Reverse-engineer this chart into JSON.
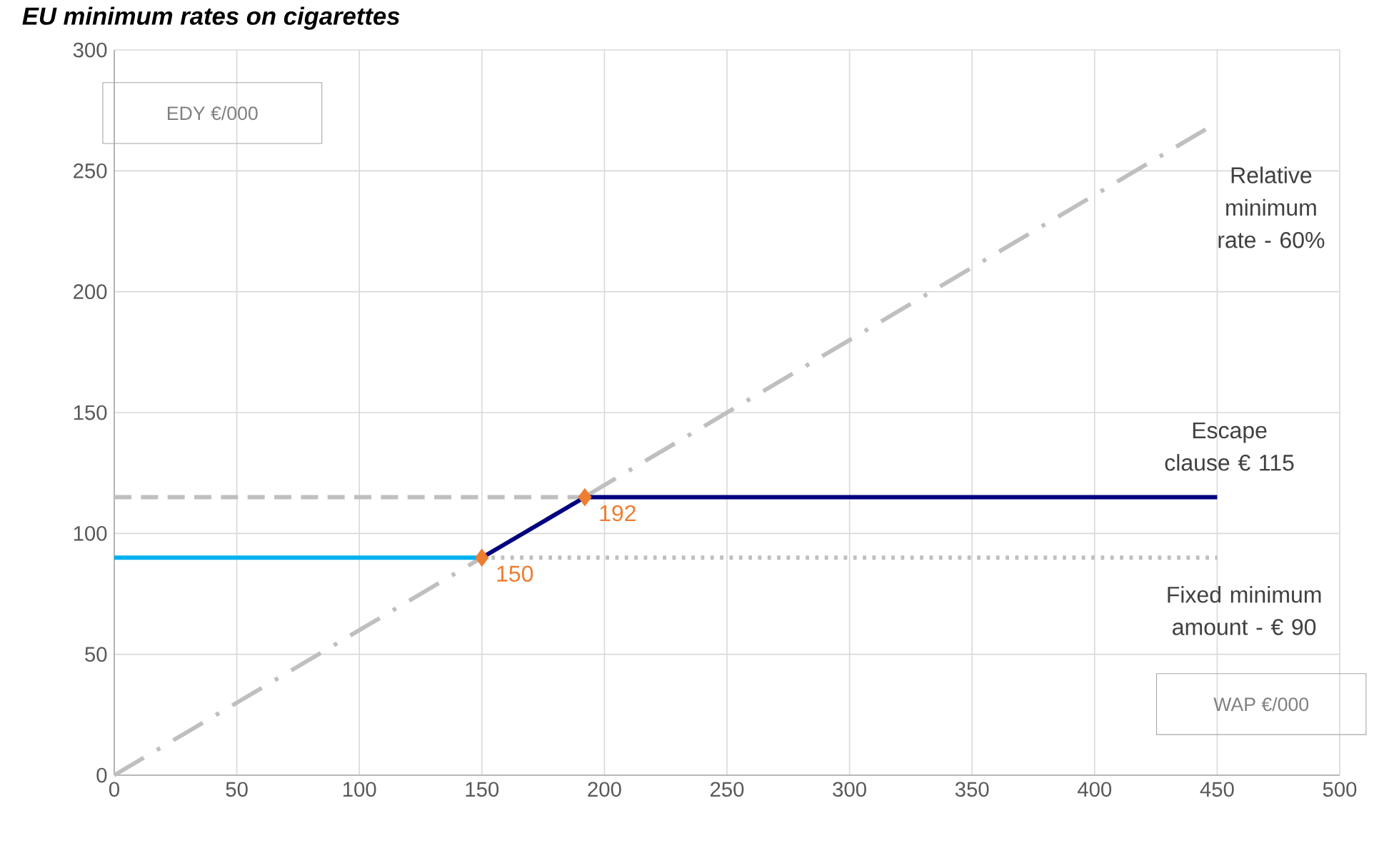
{
  "chart_data": {
    "type": "line",
    "title": "EU minimum rates on cigarettes",
    "xlabel": "WAP €/000",
    "ylabel": "EDY €/000",
    "xlim": [
      0,
      500
    ],
    "ylim": [
      0,
      300
    ],
    "xticks": [
      0,
      50,
      100,
      150,
      200,
      250,
      300,
      350,
      400,
      450,
      500
    ],
    "yticks": [
      0,
      50,
      100,
      150,
      200,
      250,
      300
    ],
    "grid": true,
    "series": [
      {
        "x": [
          0,
          450
        ],
        "values": [
          0,
          270
        ],
        "color": "#bfbfbf",
        "line_style": "dashdot"
      },
      {
        "x": [
          0,
          192
        ],
        "values": [
          115,
          115
        ],
        "color": "#bfbfbf",
        "line_style": "dashed"
      },
      {
        "x": [
          150,
          450
        ],
        "values": [
          90,
          90
        ],
        "color": "#bfbfbf",
        "line_style": "dotted"
      },
      {
        "x": [
          0,
          150
        ],
        "values": [
          90,
          90
        ],
        "color": "#00b0f0",
        "line_style": "solid"
      },
      {
        "x": [
          150,
          192,
          450
        ],
        "values": [
          90,
          115,
          115
        ],
        "color": "#000080",
        "line_style": "solid"
      },
      {
        "type": "scatter",
        "x": [
          150,
          192
        ],
        "values": [
          90,
          115
        ],
        "color": "#ed7d31",
        "marker": "diamond"
      }
    ],
    "annotations": [
      "Relative minimum rate - 60%",
      "Escape clause € 115",
      "Fixed minimum amount - € 90",
      {
        "text": "150",
        "x": 150,
        "y": 90
      },
      {
        "text": "192",
        "x": 192,
        "y": 115
      }
    ]
  }
}
